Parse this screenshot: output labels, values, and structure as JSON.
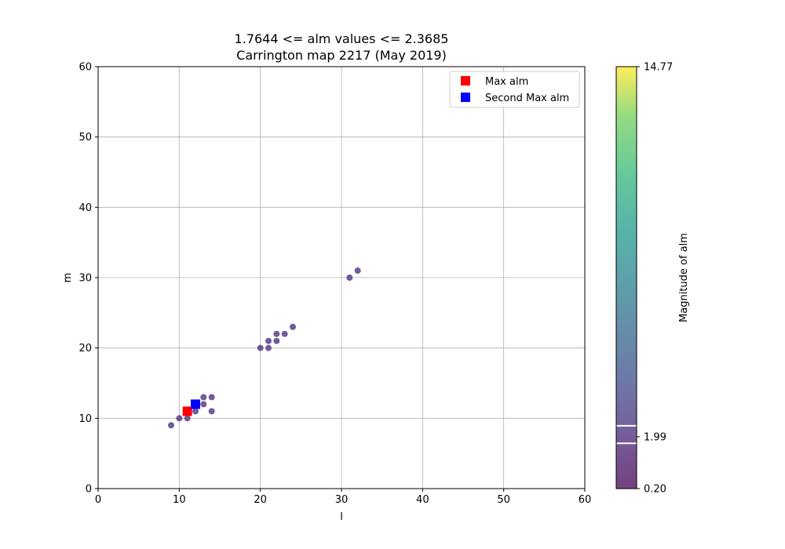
{
  "chart_data": {
    "type": "scatter",
    "title": "1.7644 <= alm values <= 2.3685",
    "subtitle": "Carrington map 2217 (May 2019)",
    "xlabel": "l",
    "ylabel": "m",
    "xlim": [
      0,
      60
    ],
    "ylim": [
      0,
      60
    ],
    "xticks": [
      0,
      10,
      20,
      30,
      40,
      50,
      60
    ],
    "yticks": [
      0,
      10,
      20,
      30,
      40,
      50,
      60
    ],
    "grid": true,
    "legend_position": "top-right",
    "point_color": "#5b3f87",
    "points": [
      {
        "l": 9,
        "m": 9
      },
      {
        "l": 10,
        "m": 10
      },
      {
        "l": 11,
        "m": 10
      },
      {
        "l": 11,
        "m": 11
      },
      {
        "l": 12,
        "m": 11
      },
      {
        "l": 12,
        "m": 12
      },
      {
        "l": 13,
        "m": 12
      },
      {
        "l": 13,
        "m": 13
      },
      {
        "l": 14,
        "m": 11
      },
      {
        "l": 14,
        "m": 13
      },
      {
        "l": 20,
        "m": 20
      },
      {
        "l": 21,
        "m": 20
      },
      {
        "l": 21,
        "m": 21
      },
      {
        "l": 22,
        "m": 21
      },
      {
        "l": 22,
        "m": 22
      },
      {
        "l": 23,
        "m": 22
      },
      {
        "l": 24,
        "m": 23
      },
      {
        "l": 31,
        "m": 30
      },
      {
        "l": 32,
        "m": 31
      }
    ],
    "highlights": [
      {
        "name": "Max alm",
        "l": 11,
        "m": 11,
        "color": "#ff0000"
      },
      {
        "name": "Second Max alm",
        "l": 12,
        "m": 12,
        "color": "#0000ff"
      }
    ],
    "colorbar": {
      "label": "Magnitude of alm",
      "min": 0.2,
      "max": 14.77,
      "tick_labels": [
        "0.20",
        "1.99",
        "14.77"
      ],
      "tick_values": [
        0.2,
        1.99,
        14.77
      ],
      "range_lines": [
        1.7644,
        2.3685
      ],
      "colormap": "viridis",
      "alpha": 0.75
    }
  }
}
